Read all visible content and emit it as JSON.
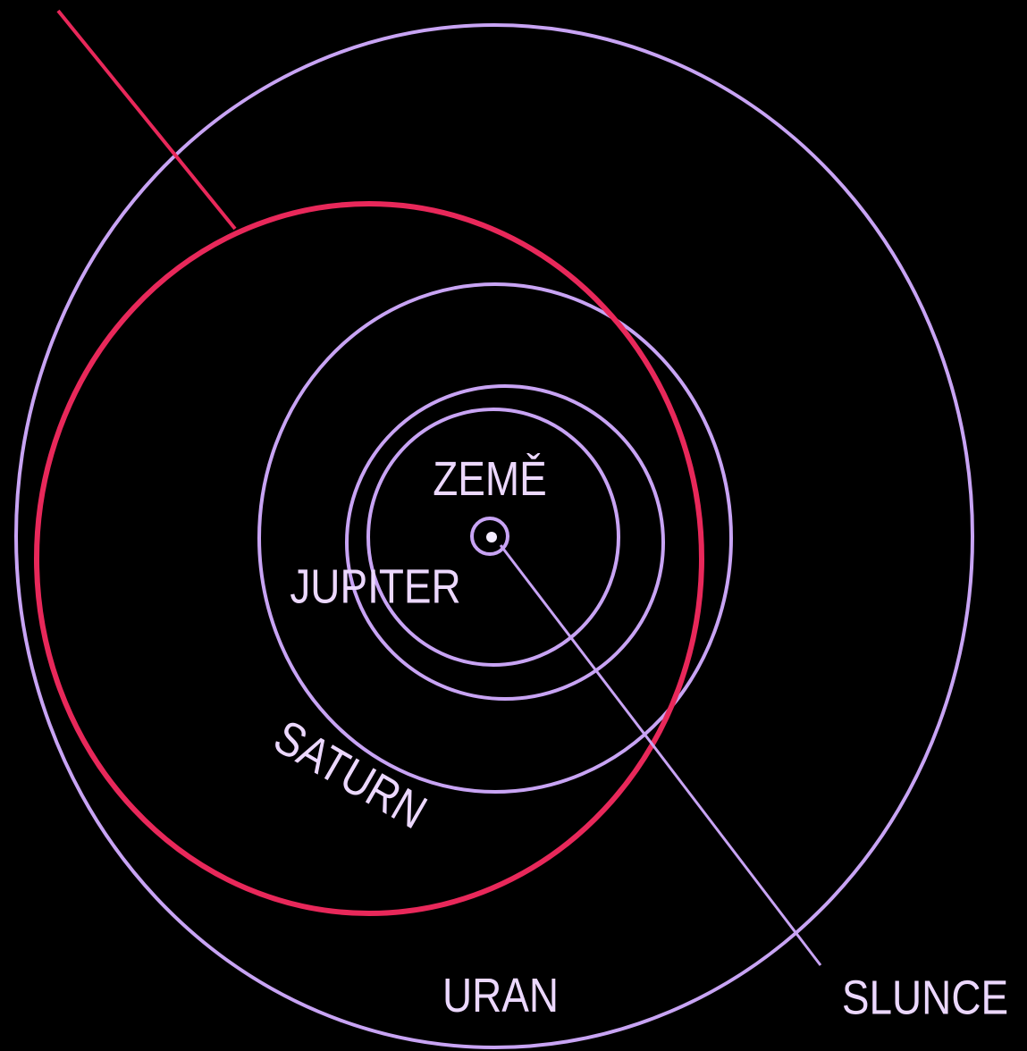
{
  "labels": {
    "earth": "ZEMĚ",
    "jupiter": "JUPITER",
    "saturn": "SATURN",
    "uranus": "URAN",
    "sun": "SLUNCE"
  }
}
